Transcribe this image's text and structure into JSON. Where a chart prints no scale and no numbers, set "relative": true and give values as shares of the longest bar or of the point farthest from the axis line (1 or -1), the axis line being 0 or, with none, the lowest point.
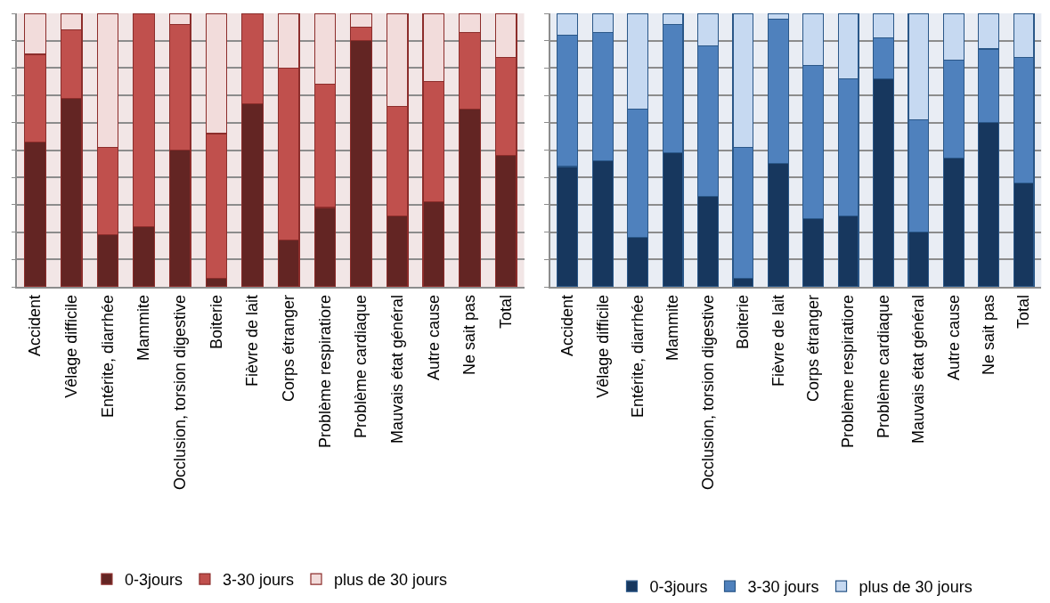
{
  "chart_data": [
    {
      "type": "bar",
      "stacked": true,
      "relative": true,
      "grid": "y",
      "legend": "bottom",
      "categories": [
        "Accident",
        "Vêlage difficile",
        "Entérite, diarrhée",
        "Mammite",
        "Occlusion, torsion digestive",
        "Boiterie",
        "Fièvre de lait",
        "Corps étranger",
        "Problème respiratiore",
        "Problème cardiaque",
        "Mauvais état général",
        "Autre cause",
        "Ne sait pas",
        "Total"
      ],
      "series": [
        {
          "name": "0-3jours",
          "color": "#632523",
          "values": [
            0.53,
            0.69,
            0.19,
            0.22,
            0.5,
            0.03,
            0.67,
            0.17,
            0.29,
            0.9,
            0.26,
            0.31,
            0.65,
            0.48
          ]
        },
        {
          "name": "3-30 jours",
          "color": "#c0504d",
          "values": [
            0.32,
            0.25,
            0.32,
            0.78,
            0.46,
            0.53,
            0.33,
            0.63,
            0.45,
            0.05,
            0.4,
            0.44,
            0.28,
            0.36
          ]
        },
        {
          "name": "plus de 30 jours",
          "color": "#f2dcdb",
          "values": [
            0.15,
            0.06,
            0.49,
            0.0,
            0.04,
            0.44,
            0.0,
            0.2,
            0.26,
            0.05,
            0.34,
            0.25,
            0.07,
            0.16
          ]
        }
      ]
    },
    {
      "type": "bar",
      "stacked": true,
      "relative": true,
      "grid": "y",
      "legend": "bottom",
      "categories": [
        "Accident",
        "Vêlage difficile",
        "Entérite, diarrhée",
        "Mammite",
        "Occlusion, torsion digestive",
        "Boiterie",
        "Fièvre de lait",
        "Corps étranger",
        "Problème respiratiore",
        "Problème cardiaque",
        "Mauvais état général",
        "Autre cause",
        "Ne sait pas",
        "Total"
      ],
      "series": [
        {
          "name": "0-3jours",
          "color": "#17375e",
          "values": [
            0.44,
            0.46,
            0.18,
            0.49,
            0.33,
            0.03,
            0.45,
            0.25,
            0.26,
            0.76,
            0.2,
            0.47,
            0.6,
            0.38
          ]
        },
        {
          "name": "3-30 jours",
          "color": "#4f81bd",
          "values": [
            0.48,
            0.47,
            0.47,
            0.47,
            0.55,
            0.48,
            0.53,
            0.56,
            0.5,
            0.15,
            0.41,
            0.36,
            0.27,
            0.46
          ]
        },
        {
          "name": "plus de 30 jours",
          "color": "#c6d9f1",
          "values": [
            0.08,
            0.07,
            0.35,
            0.04,
            0.12,
            0.49,
            0.02,
            0.19,
            0.24,
            0.09,
            0.39,
            0.17,
            0.13,
            0.16
          ]
        }
      ]
    }
  ]
}
